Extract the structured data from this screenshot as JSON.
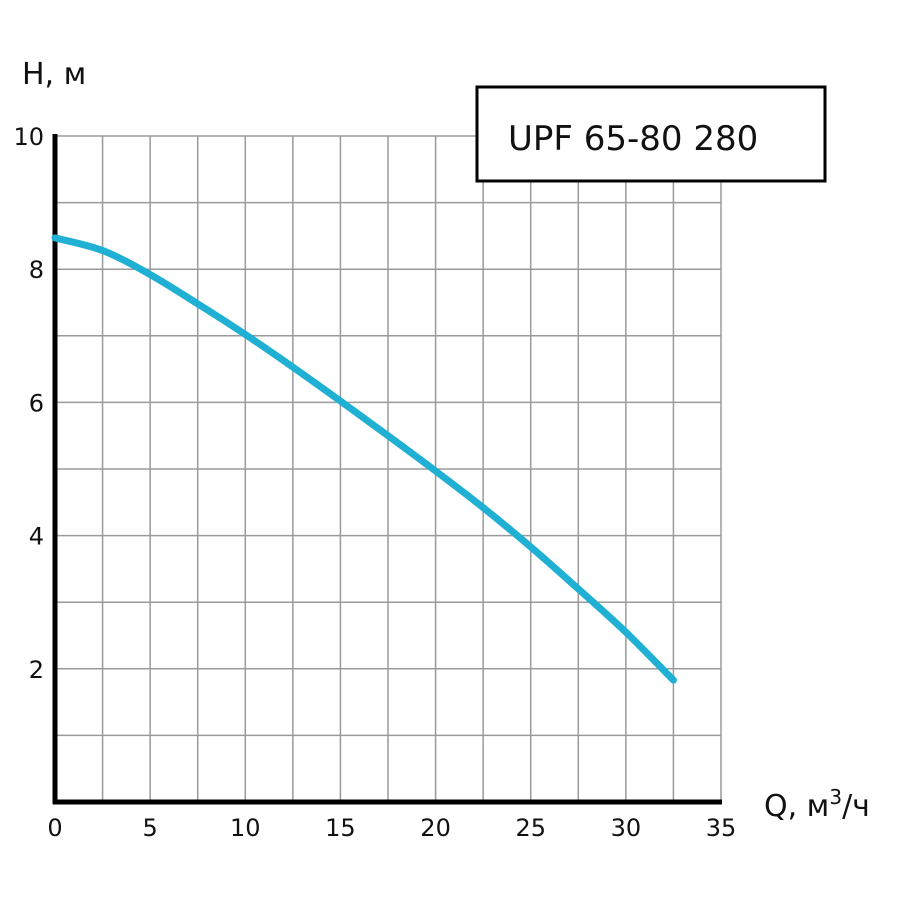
{
  "chart_data": {
    "type": "line",
    "title": "",
    "ylabel": "H, м",
    "xlabel_main": "Q, м",
    "xlabel_sup": "3",
    "xlabel_tail": "/ч",
    "xlim": [
      0,
      35
    ],
    "ylim": [
      0,
      10
    ],
    "x_ticks": [
      0,
      5,
      10,
      15,
      20,
      25,
      30,
      35
    ],
    "y_ticks": [
      2,
      4,
      6,
      8,
      10
    ],
    "x_grid_step": 2.5,
    "y_grid_step": 1,
    "grid": true,
    "legend": {
      "position": "top-right",
      "label": "UPF 65-80 280"
    },
    "colors": {
      "curve": "#1fb0d3",
      "axis": "#000000",
      "grid": "#9a9a9a"
    },
    "series": [
      {
        "x": [
          0,
          2.5,
          5,
          7.5,
          10,
          12.5,
          15,
          17.5,
          20,
          22.5,
          25,
          27.5,
          30,
          32.5
        ],
        "values": [
          8.47,
          8.28,
          7.92,
          7.48,
          7.02,
          6.53,
          6.02,
          5.5,
          4.97,
          4.42,
          3.83,
          3.2,
          2.55,
          1.83
        ]
      }
    ]
  }
}
